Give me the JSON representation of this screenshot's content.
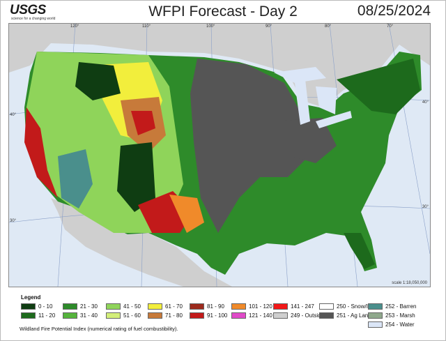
{
  "header": {
    "logo_text": "USGS",
    "logo_tagline": "science for a changing world",
    "title": "WFPI Forecast - Day 2",
    "date": "08/25/2024"
  },
  "map": {
    "longitude_labels": [
      "120°",
      "110°",
      "100°",
      "90°",
      "80°",
      "70°"
    ],
    "latitude_labels_left": [
      "40°",
      "30°"
    ],
    "latitude_labels_right": [
      "40°",
      "30°"
    ],
    "scale": "scale 1:18,050,000"
  },
  "legend": {
    "title": "Legend",
    "items": [
      {
        "label": "0 - 10",
        "color": "#0f3d12"
      },
      {
        "label": "21 - 30",
        "color": "#2e8b2a"
      },
      {
        "label": "41 - 50",
        "color": "#8fd45a"
      },
      {
        "label": "61 - 70",
        "color": "#f2ee3c"
      },
      {
        "label": "81 - 90",
        "color": "#9c2a1c"
      },
      {
        "label": "101 - 120",
        "color": "#f08a2a"
      },
      {
        "label": "141 - 247",
        "color": "#f21818"
      },
      {
        "label": "250 - Snow/Ice",
        "color": "#ffffff"
      },
      {
        "label": "252 - Barren",
        "color": "#4a8f8c"
      },
      {
        "label": "11 - 20",
        "color": "#1d6a1c"
      },
      {
        "label": "31 - 40",
        "color": "#55b43c"
      },
      {
        "label": "51 - 60",
        "color": "#d3ef7a"
      },
      {
        "label": "71 - 80",
        "color": "#c77a3a"
      },
      {
        "label": "91 - 100",
        "color": "#c21a1a"
      },
      {
        "label": "121 - 140",
        "color": "#e04ac8"
      },
      {
        "label": "249 - Outside US",
        "color": "#cfcfcf"
      },
      {
        "label": "251 - Ag Land",
        "color": "#555555"
      },
      {
        "label": "253 - Marsh",
        "color": "#8fa88c"
      },
      {
        "label": "254 - Water",
        "color": "#dbe6f7"
      }
    ],
    "footnote": "Wildland Fire Potential Index (numerical rating of fuel combustibility)."
  },
  "colors": {
    "ocean": "#dfe9f5",
    "outside_us": "#cfcfcf",
    "graticule": "#8aa0c8"
  }
}
